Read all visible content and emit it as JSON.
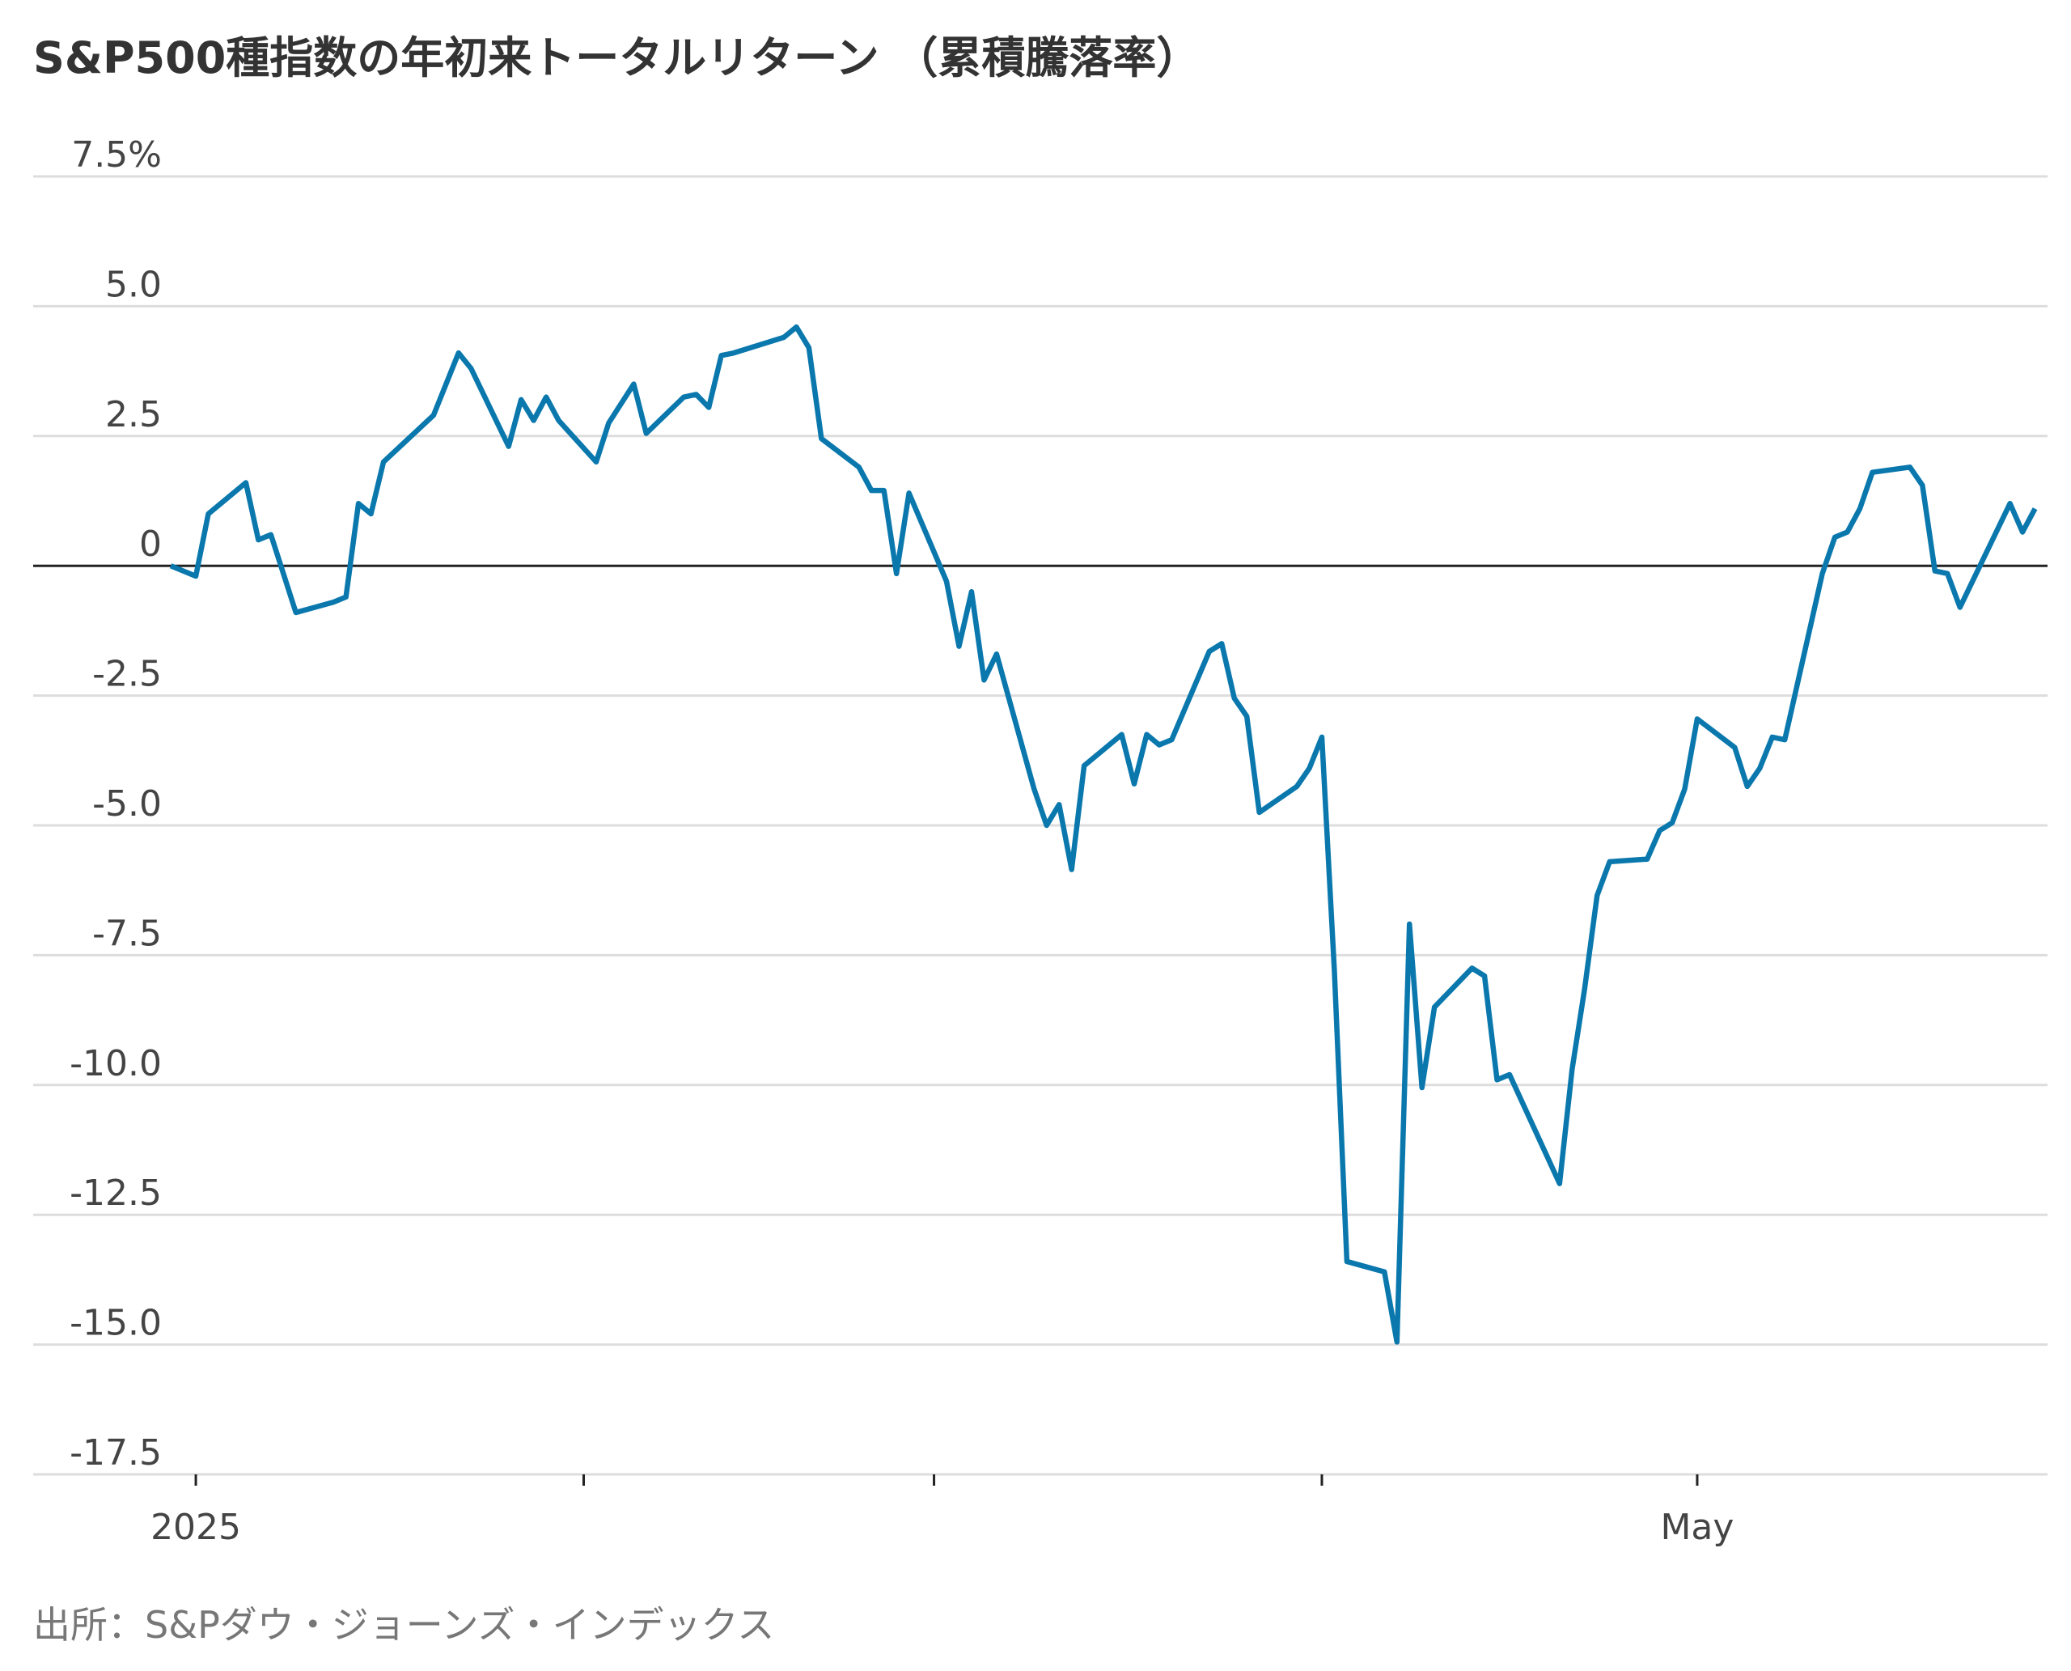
{
  "chart_data": {
    "type": "line",
    "title": "S&P500種指数の年初来トータルリターン （累積騰落率）",
    "source": "出所：S&Pダウ・ジョーンズ・インデックス",
    "x": [
      -2,
      0,
      1,
      4,
      5,
      6,
      8,
      11,
      12,
      13,
      14,
      15,
      19,
      21,
      22,
      25,
      26,
      27,
      28,
      29,
      32,
      33,
      35,
      36,
      39,
      40,
      41,
      42,
      43,
      47,
      48,
      49,
      50,
      53,
      54,
      55,
      56,
      57,
      60,
      61,
      62,
      63,
      64,
      67,
      68,
      69,
      70,
      71,
      74,
      75,
      76,
      77,
      78,
      81,
      82,
      83,
      84,
      85,
      88,
      89,
      90,
      91,
      92,
      95,
      96,
      97,
      98,
      99,
      102,
      103,
      104,
      105,
      109,
      110,
      111,
      112,
      113,
      116,
      117,
      118,
      119,
      120,
      123,
      124,
      125,
      126,
      127,
      130,
      131,
      132,
      133,
      134,
      137,
      138,
      139,
      140,
      141,
      145,
      146,
      147
    ],
    "series": [
      {
        "name": "S&P500",
        "color": "#0a78ad",
        "values": [
          0,
          -0.2,
          1.0,
          1.6,
          0.5,
          0.6,
          -0.9,
          -0.7,
          -0.6,
          1.2,
          1.0,
          2.0,
          2.9,
          4.1,
          3.8,
          2.3,
          3.2,
          2.8,
          3.25,
          2.8,
          2.0,
          2.75,
          3.5,
          2.55,
          3.25,
          3.3,
          3.05,
          4.05,
          4.1,
          4.4,
          4.6,
          4.2,
          2.45,
          1.9,
          1.45,
          1.45,
          -0.15,
          1.4,
          -0.3,
          -1.55,
          -0.5,
          -2.2,
          -1.7,
          -4.3,
          -5.0,
          -4.6,
          -5.85,
          -3.85,
          -3.25,
          -4.2,
          -3.25,
          -3.45,
          -3.35,
          -1.65,
          -1.5,
          -2.55,
          -2.9,
          -4.75,
          -4.25,
          -3.9,
          -3.3,
          -7.8,
          -13.4,
          -13.6,
          -14.95,
          -6.9,
          -10.05,
          -8.5,
          -7.75,
          -7.9,
          -9.9,
          -9.8,
          -11.9,
          -9.7,
          -8.15,
          -6.35,
          -5.7,
          -5.65,
          -5.1,
          -4.95,
          -4.3,
          -2.95,
          -3.5,
          -4.25,
          -3.9,
          -3.3,
          -3.35,
          -0.15,
          0.55,
          0.65,
          1.1,
          1.8,
          1.9,
          1.55,
          -0.1,
          -0.15,
          -0.8,
          1.2,
          0.65,
          1.1
        ]
      }
    ],
    "xlim": [
      -13,
      148
    ],
    "xticks": [
      {
        "value": 0,
        "label": "2025"
      },
      {
        "value": 31,
        "label": null
      },
      {
        "value": 59,
        "label": null
      },
      {
        "value": 90,
        "label": null
      },
      {
        "value": 120,
        "label": "May"
      }
    ],
    "ylim": [
      -17.5,
      7.5
    ],
    "yticks": [
      {
        "value": 7.5,
        "label": "7.5%"
      },
      {
        "value": 5,
        "label": "5.0"
      },
      2.5,
      0,
      -2.5,
      {
        "value": -5,
        "label": "-5.0"
      },
      -7.5,
      {
        "value": -10,
        "label": "-10.0"
      },
      -12.5,
      {
        "value": -15,
        "label": "-15.0"
      },
      -17.5
    ],
    "grid": true
  }
}
